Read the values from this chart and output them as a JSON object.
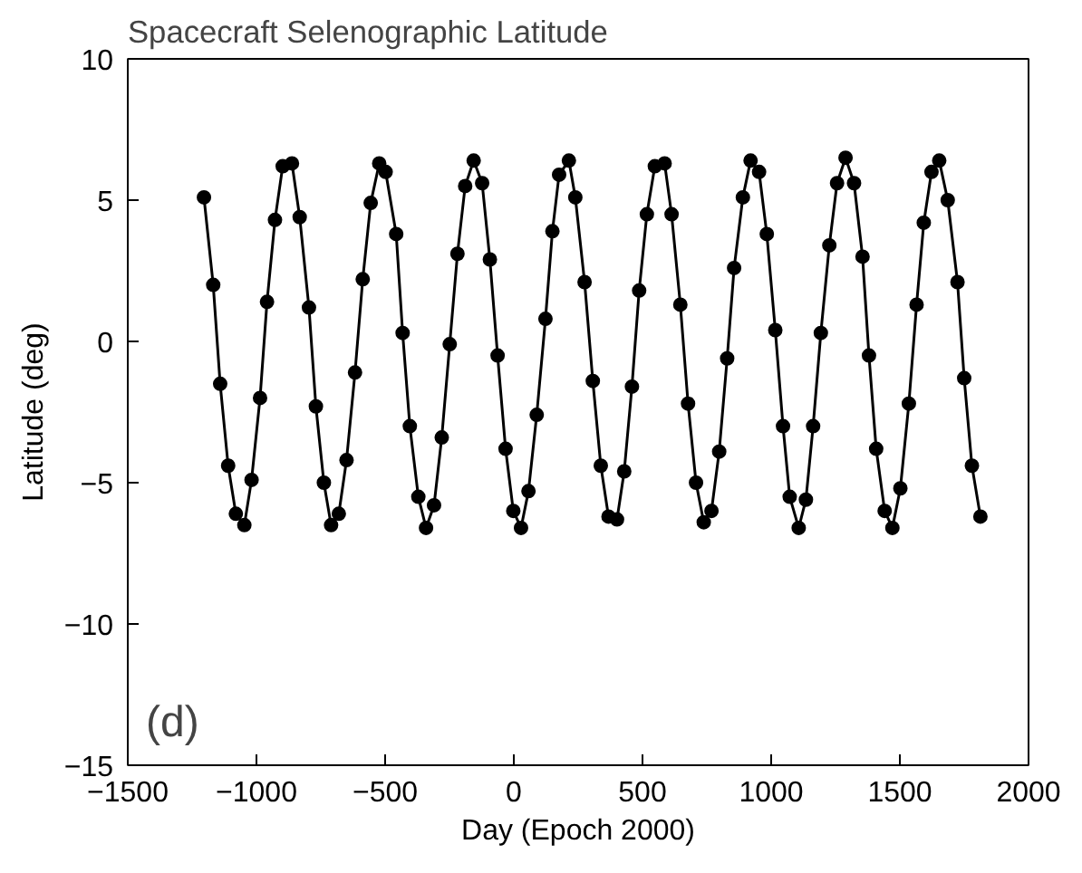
{
  "chart_data": {
    "type": "line",
    "title": "Spacecraft Selenographic Latitude",
    "xlabel": "Day (Epoch 2000)",
    "ylabel": "Latitude (deg)",
    "annotations": [
      "(d)"
    ],
    "x": [
      -1204,
      -1168,
      -1141,
      -1110,
      -1080,
      -1047,
      -1019,
      -986,
      -959,
      -928,
      -898,
      -862,
      -832,
      -796,
      -769,
      -738,
      -710,
      -680,
      -650,
      -617,
      -587,
      -556,
      -523,
      -498,
      -457,
      -432,
      -404,
      -371,
      -341,
      -310,
      -280,
      -249,
      -219,
      -189,
      -156,
      -123,
      -93,
      -63,
      -32,
      -2,
      28,
      57,
      89,
      123,
      150,
      176,
      214,
      239,
      275,
      307,
      338,
      368,
      401,
      429,
      459,
      487,
      517,
      548,
      586,
      613,
      647,
      677,
      708,
      738,
      768,
      798,
      829,
      856,
      890,
      920,
      953,
      983,
      1016,
      1046,
      1072,
      1107,
      1135,
      1163,
      1193,
      1226,
      1256,
      1289,
      1322,
      1355,
      1380,
      1408,
      1441,
      1471,
      1502,
      1535,
      1565,
      1593,
      1623,
      1653,
      1686,
      1724,
      1750,
      1780,
      1813
    ],
    "series": [
      {
        "color": "#000000",
        "values": [
          5.1,
          2.0,
          -1.5,
          -4.4,
          -6.1,
          -6.5,
          -4.9,
          -2.0,
          1.4,
          4.3,
          6.2,
          6.3,
          4.4,
          1.2,
          -2.3,
          -5.0,
          -6.5,
          -6.1,
          -4.2,
          -1.1,
          2.2,
          4.9,
          6.3,
          6.0,
          3.8,
          0.3,
          -3.0,
          -5.5,
          -6.6,
          -5.8,
          -3.4,
          -0.1,
          3.1,
          5.5,
          6.4,
          5.6,
          2.9,
          -0.5,
          -3.8,
          -6.0,
          -6.6,
          -5.3,
          -2.6,
          0.8,
          3.9,
          5.9,
          6.4,
          5.1,
          2.1,
          -1.4,
          -4.4,
          -6.2,
          -6.3,
          -4.6,
          -1.6,
          1.8,
          4.5,
          6.2,
          6.3,
          4.5,
          1.3,
          -2.2,
          -5.0,
          -6.4,
          -6.0,
          -3.9,
          -0.6,
          2.6,
          5.1,
          6.4,
          6.0,
          3.8,
          0.4,
          -3.0,
          -5.5,
          -6.6,
          -5.6,
          -3.0,
          0.3,
          3.4,
          5.6,
          6.5,
          5.6,
          3.0,
          -0.5,
          -3.8,
          -6.0,
          -6.6,
          -5.2,
          -2.2,
          1.3,
          4.2,
          6.0,
          6.4,
          5.0,
          2.1,
          -1.3,
          -4.4,
          -6.2
        ]
      }
    ],
    "xlim": [
      -1500,
      2000
    ],
    "xticks": [
      -1500,
      -1000,
      -500,
      0,
      500,
      1000,
      1500,
      2000
    ],
    "ylim": [
      -15,
      10
    ],
    "yticks": [
      -15,
      -10,
      -5,
      0,
      5,
      10
    ],
    "grid": false,
    "marker": "circle",
    "line_style": "solid"
  }
}
